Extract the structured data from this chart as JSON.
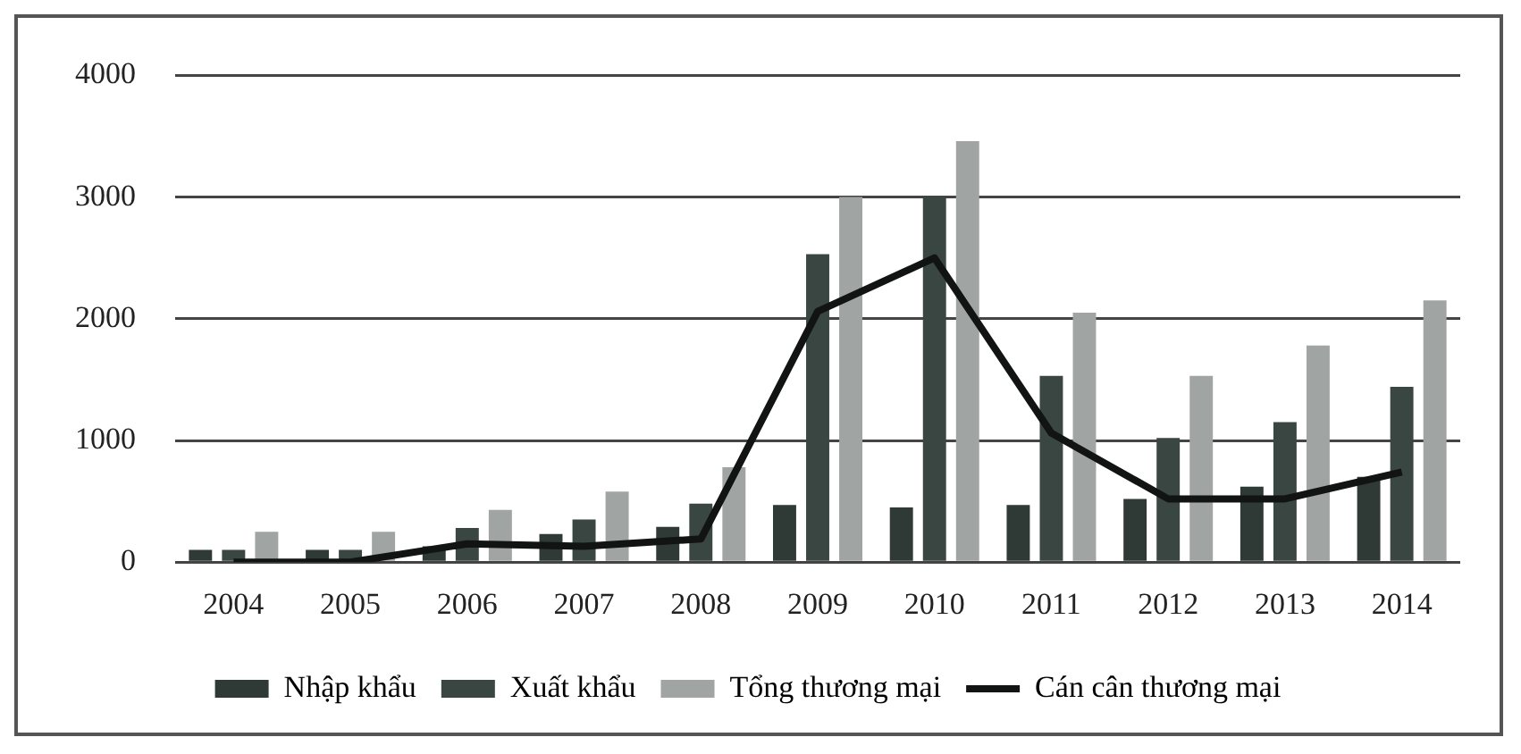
{
  "chart_data": {
    "type": "bar",
    "categories": [
      "2004",
      "2005",
      "2006",
      "2007",
      "2008",
      "2009",
      "2010",
      "2011",
      "2012",
      "2013",
      "2014"
    ],
    "series": [
      {
        "name": "Nhập khẩu",
        "color": "#2f3a36",
        "values": [
          100,
          100,
          130,
          230,
          290,
          470,
          450,
          470,
          520,
          620,
          700
        ]
      },
      {
        "name": "Xuất khẩu",
        "color": "#3a4642",
        "values": [
          100,
          100,
          280,
          350,
          480,
          2530,
          3000,
          1530,
          1020,
          1150,
          1440
        ]
      },
      {
        "name": "Tổng thương mại",
        "color": "#a0a4a2",
        "values": [
          250,
          250,
          430,
          580,
          780,
          3000,
          3460,
          2050,
          1530,
          1780,
          2150
        ]
      },
      {
        "name": "Cán cân thương mại",
        "type": "line",
        "color": "#111413",
        "values": [
          0,
          0,
          150,
          130,
          190,
          2060,
          2500,
          1060,
          520,
          520,
          740
        ]
      }
    ],
    "ylim": [
      0,
      4000
    ],
    "yticks": [
      0,
      1000,
      2000,
      3000,
      4000
    ],
    "grid": "y",
    "legend": "bottom",
    "marker": "none",
    "line_style": "solid"
  }
}
